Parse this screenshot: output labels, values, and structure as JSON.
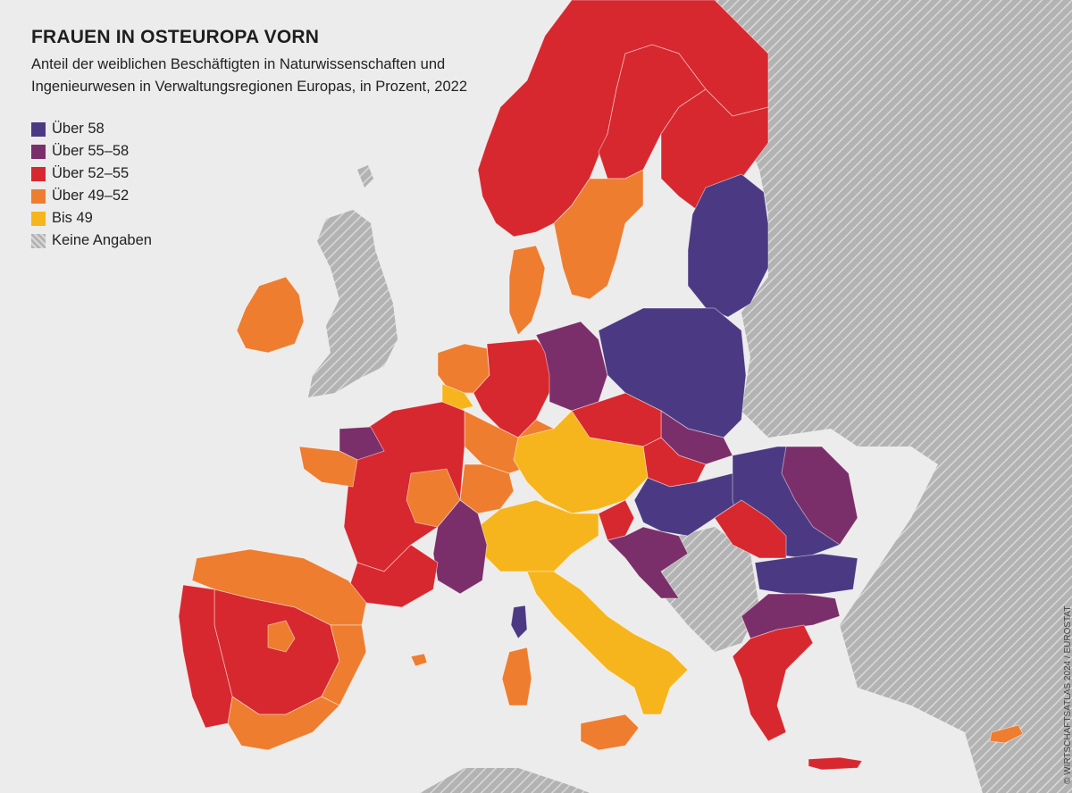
{
  "title": "FRAUEN IN OSTEUROPA VORN",
  "subtitle": "Anteil der weiblichen Beschäftigten in Naturwissenschaften und Ingenieurwesen in Verwaltungsregionen Europas, in Prozent, 2022",
  "credit": "© WIRTSCHAFTSATLAS 2024 / EUROSTAT",
  "legend": [
    {
      "label": "Über 58",
      "color": "#4b3a83",
      "icon": "swatch"
    },
    {
      "label": "Über 55–58",
      "color": "#7b2f6a",
      "icon": "swatch"
    },
    {
      "label": "Über 52–55",
      "color": "#d7282f",
      "icon": "swatch"
    },
    {
      "label": "Über 49–52",
      "color": "#ee7d30",
      "icon": "swatch"
    },
    {
      "label": "Bis 49",
      "color": "#f7b51d",
      "icon": "swatch"
    },
    {
      "label": "Keine Angaben",
      "color": "#b3b3b3",
      "icon": "hatched-swatch"
    }
  ],
  "colors": {
    "sea": "#ececec",
    "nodata": "#b3b3b3",
    "hatch": "#d9d9d9"
  }
}
